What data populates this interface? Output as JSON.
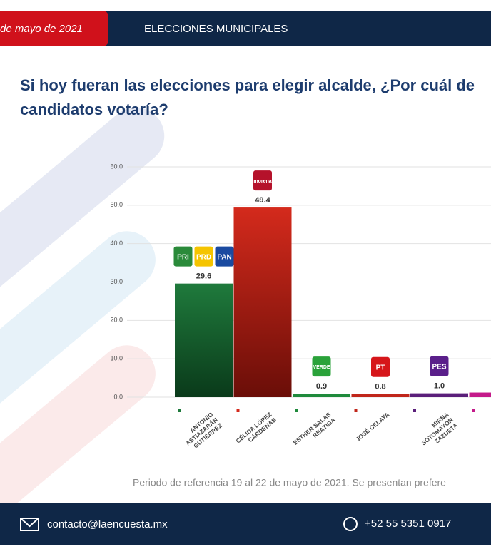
{
  "header": {
    "date": "de mayo de 2021",
    "section": "ELECCIONES MUNICIPALES"
  },
  "chart_data": {
    "type": "bar",
    "title": [
      "Si hoy fueran las elecciones para elegir alcalde, ¿Por cuál de",
      "candidatos votaría?"
    ],
    "categories": [
      "ANTONIO\nASTIAZARÁN\nGUTIÉRREZ",
      "CÉLIDA LÓPEZ\nCÁRDENAS",
      "ESTHER SALAS\nREÁTIGA",
      "JOSÉ CELAYA",
      "MIRNA\nSOTOMAYOR\nZAZUETA",
      null
    ],
    "values": [
      29.6,
      49.4,
      0.9,
      0.8,
      1.0,
      1.2
    ],
    "value_labels": [
      "29.6",
      "49.4",
      "0.9",
      "0.8",
      "1.0",
      null
    ],
    "colors": [
      "#1f7a3c",
      "#d42a1c",
      "#1f8a3c",
      "#c0261a",
      "#5a1f7a",
      "#c41a8a"
    ],
    "party_logos": [
      [
        "PRI",
        "PRD",
        "PAN"
      ],
      [
        "morena"
      ],
      [
        "VERDE"
      ],
      [
        "PT"
      ],
      [
        "PES"
      ],
      []
    ],
    "logo_colors": [
      "#ffffff",
      "#b5122b",
      "#2aa23a",
      "#d6161a",
      "#5a1f8a"
    ],
    "ylim": [
      0,
      60
    ],
    "yticks": [
      {
        "value": 0,
        "label": "0.0"
      },
      {
        "value": 10,
        "label": "10.0"
      },
      {
        "value": 20,
        "label": "20.0"
      },
      {
        "value": 30,
        "label": "30.0"
      },
      {
        "value": 40,
        "label": "40.0"
      },
      {
        "value": 50,
        "label": "50.0"
      },
      {
        "value": 60,
        "label": "60.0"
      }
    ],
    "grid": true,
    "note": "Periodo de referencia 19 al 22 de mayo de 2021. Se presentan prefere"
  },
  "footer": {
    "email": "contacto@laencuesta.mx",
    "phone": "+52 55 5351 0917"
  }
}
